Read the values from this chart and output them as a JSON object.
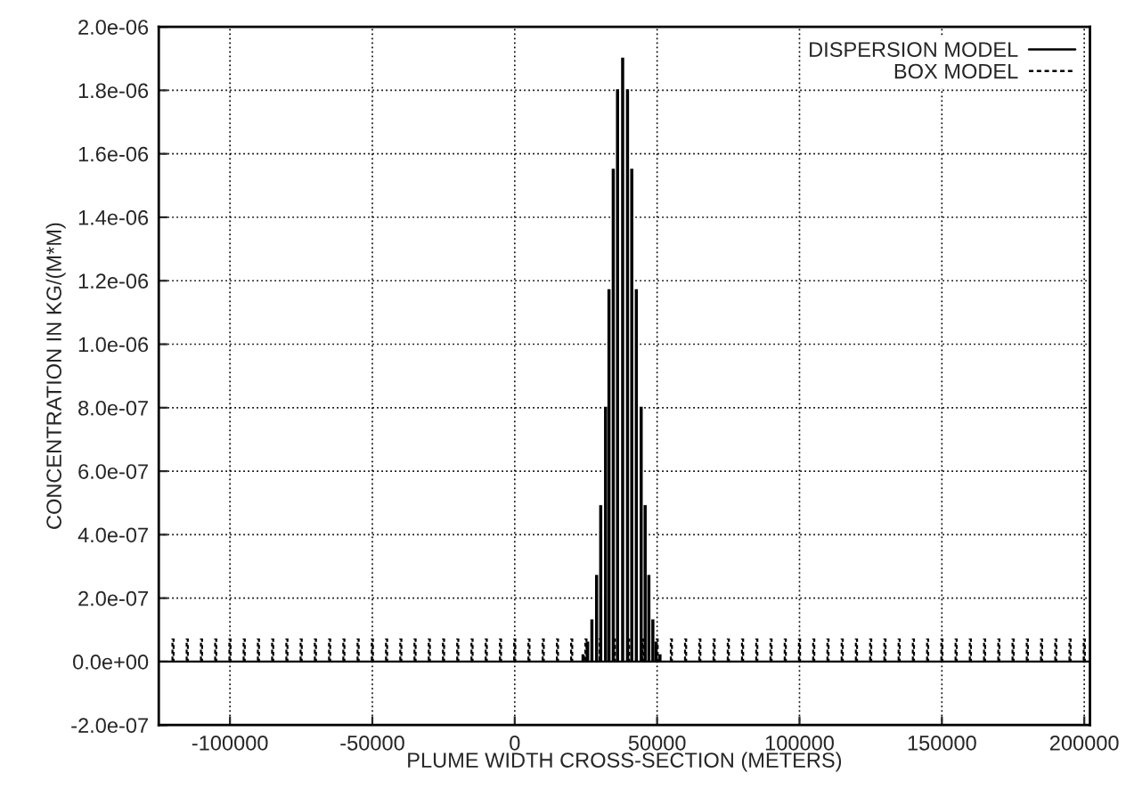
{
  "chart_data": {
    "type": "bar",
    "xlabel": "PLUME WIDTH CROSS-SECTION (METERS)",
    "ylabel": "CONCENTRATION IN KG/(M*M)",
    "series": [
      {
        "name": "DISPERSION MODEL",
        "color": "#000000",
        "line_style": "solid",
        "x": [
          24000,
          25600,
          27100,
          28750,
          30200,
          31900,
          33100,
          34600,
          36100,
          37900,
          39600,
          41100,
          42700,
          44400,
          45800,
          47100,
          48500,
          49600,
          51000
        ],
        "values": [
          2e-08,
          6e-08,
          1.3e-07,
          2.7e-07,
          4.9e-07,
          8e-07,
          1.17e-06,
          1.55e-06,
          1.8e-06,
          1.9e-06,
          1.8e-06,
          1.55e-06,
          1.17e-06,
          8e-07,
          4.9e-07,
          2.7e-07,
          1.3e-07,
          6e-08,
          2e-08
        ]
      },
      {
        "name": "BOX MODEL",
        "color": "#000000",
        "line_style": "dashed",
        "x": [
          -120000,
          -115000,
          -110000,
          -105000,
          -100000,
          -95000,
          -90000,
          -85000,
          -80000,
          -75000,
          -70000,
          -65000,
          -60000,
          -55000,
          -50000,
          -45000,
          -40000,
          -35000,
          -30000,
          -25000,
          -20000,
          -15000,
          -10000,
          -5000,
          0,
          5000,
          10000,
          15000,
          20000,
          25000,
          30000,
          35000,
          40000,
          45000,
          50000,
          55000,
          60000,
          65000,
          70000,
          75000,
          80000,
          85000,
          90000,
          95000,
          100000,
          105000,
          110000,
          115000,
          120000,
          125000,
          130000,
          135000,
          140000,
          145000,
          150000,
          155000,
          160000,
          165000,
          170000,
          175000,
          180000,
          185000,
          190000,
          195000,
          200000
        ],
        "values": [
          7e-08,
          7e-08,
          7e-08,
          7e-08,
          7e-08,
          7e-08,
          7e-08,
          7e-08,
          7e-08,
          7e-08,
          7e-08,
          7e-08,
          7e-08,
          7e-08,
          7e-08,
          7e-08,
          7e-08,
          7e-08,
          7e-08,
          7e-08,
          7e-08,
          7e-08,
          7e-08,
          7e-08,
          7e-08,
          7e-08,
          7e-08,
          7e-08,
          7e-08,
          7e-08,
          7e-08,
          7e-08,
          7e-08,
          7e-08,
          7e-08,
          7e-08,
          7e-08,
          7e-08,
          7e-08,
          7e-08,
          7e-08,
          7e-08,
          7e-08,
          7e-08,
          7e-08,
          7e-08,
          7e-08,
          7e-08,
          7e-08,
          7e-08,
          7e-08,
          7e-08,
          7e-08,
          7e-08,
          7e-08,
          7e-08,
          7e-08,
          7e-08,
          7e-08,
          7e-08,
          7e-08,
          7e-08,
          7e-08,
          7e-08,
          7e-08
        ]
      }
    ],
    "xlim": [
      -125000,
      202000
    ],
    "xticks": [
      -100000,
      -50000,
      0,
      50000,
      100000,
      150000,
      200000
    ],
    "ylim": [
      -2e-07,
      2e-06
    ],
    "yticks": [
      {
        "value": -2e-07,
        "label": "-2.0e-07"
      },
      {
        "value": 0,
        "label": "0.0e+00"
      },
      {
        "value": 2e-07,
        "label": "2.0e-07"
      },
      {
        "value": 4e-07,
        "label": "4.0e-07"
      },
      {
        "value": 6e-07,
        "label": "6.0e-07"
      },
      {
        "value": 8e-07,
        "label": "8.0e-07"
      },
      {
        "value": 1e-06,
        "label": "1.0e-06"
      },
      {
        "value": 1.2e-06,
        "label": "1.2e-06"
      },
      {
        "value": 1.4e-06,
        "label": "1.4e-06"
      },
      {
        "value": 1.6e-06,
        "label": "1.6e-06"
      },
      {
        "value": 1.8e-06,
        "label": "1.8e-06"
      },
      {
        "value": 2e-06,
        "label": "2.0e-06"
      }
    ],
    "grid": true,
    "legend": "top right"
  }
}
